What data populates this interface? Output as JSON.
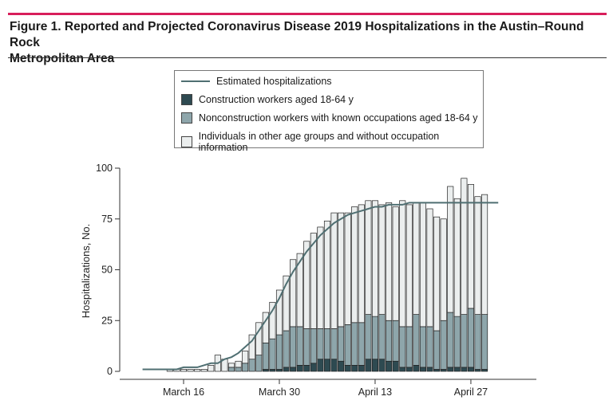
{
  "figure": {
    "title_line1": "Figure 1. Reported and Projected Coronavirus Disease 2019 Hospitalizations in the Austin–Round Rock",
    "title_line2": "Metropolitan Area"
  },
  "colors": {
    "accent_rule": "#d81e5b",
    "construction": "#2e4a51",
    "nonconstruction": "#8ea6ab",
    "other": "#ebeeee",
    "estimate_line": "#4f6f72"
  },
  "chart_data": {
    "type": "bar",
    "stacked": true,
    "title": "Reported and Projected Coronavirus Disease 2019 Hospitalizations in the Austin–Round Rock Metropolitan Area",
    "xlabel": "",
    "ylabel": "Hospitalizations, No.",
    "ylim": [
      0,
      100
    ],
    "yticks": [
      0,
      25,
      50,
      75,
      100
    ],
    "xticks": [
      {
        "label": "March 16",
        "day_index": 0
      },
      {
        "label": "March 30",
        "day_index": 14
      },
      {
        "label": "April 13",
        "day_index": 28
      },
      {
        "label": "April 27",
        "day_index": 42
      }
    ],
    "x_day_start": -3,
    "series": [
      {
        "name": "Construction workers aged 18-64 y",
        "values": [
          0,
          0,
          0,
          0,
          0,
          0,
          0,
          0,
          0,
          0,
          0,
          0,
          0,
          0,
          0,
          1,
          1,
          1,
          2,
          2,
          3,
          3,
          4,
          6,
          6,
          6,
          5,
          3,
          3,
          3,
          6,
          6,
          6,
          5,
          5,
          2,
          2,
          3,
          2,
          2,
          1,
          1,
          2,
          2,
          2,
          2,
          1,
          1
        ]
      },
      {
        "name": "Nonconstruction workers with known occupations aged 18-64 y",
        "values": [
          0,
          0,
          0,
          0,
          0,
          0,
          0,
          0,
          0,
          0,
          2,
          2,
          4,
          6,
          8,
          13,
          15,
          17,
          18,
          20,
          19,
          18,
          17,
          15,
          15,
          15,
          17,
          20,
          21,
          21,
          22,
          21,
          22,
          20,
          20,
          20,
          20,
          25,
          20,
          20,
          19,
          24,
          27,
          25,
          26,
          29,
          27,
          27
        ]
      },
      {
        "name": "Individuals in other age groups and without occupation information",
        "values": [
          0,
          1,
          1,
          1,
          1,
          1,
          1,
          3,
          8,
          6,
          2,
          3,
          6,
          12,
          16,
          15,
          18,
          22,
          27,
          33,
          36,
          43,
          47,
          50,
          53,
          57,
          56,
          55,
          57,
          58,
          56,
          57,
          54,
          58,
          56,
          62,
          60,
          55,
          61,
          58,
          56,
          50,
          62,
          58,
          67,
          61,
          58,
          59
        ]
      }
    ],
    "line_series": {
      "name": "Estimated hospitalizations",
      "x_start_day": -6,
      "x_end_day": 46,
      "values": [
        1,
        1,
        1,
        1,
        1,
        1,
        2,
        2,
        2,
        3,
        4,
        4,
        6,
        7,
        9,
        12,
        15,
        20,
        25,
        30,
        36,
        43,
        49,
        54,
        59,
        63,
        67,
        70,
        73,
        75,
        77,
        78,
        79,
        80,
        81,
        81,
        82,
        82,
        82,
        83,
        83,
        83,
        83,
        83,
        83,
        83,
        83,
        83,
        83,
        83,
        83,
        83,
        83
      ]
    }
  },
  "legend": {
    "line_label": "Estimated hospitalizations",
    "construction_label": "Construction workers aged 18-64 y",
    "nonconstruction_label": "Nonconstruction workers with known occupations aged 18-64 y",
    "other_label": "Individuals in other age groups and without occupation information"
  }
}
